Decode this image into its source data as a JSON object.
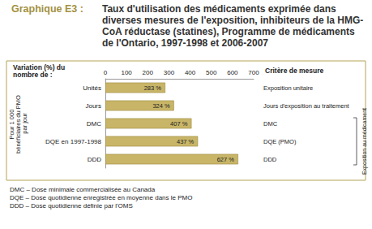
{
  "chart_data": {
    "type": "bar",
    "orientation": "horizontal",
    "figure_label": "Graphique E3 :",
    "title": "Taux d'utilisation des médicaments exprimée dans diverses mesures de l'exposition, inhibiteurs de la HMG-CoA réductase (statines), Programme de médicaments de l'Ontario, 1997-1998 et 2006-2007",
    "x_label": "Variation (%) du nombre de :",
    "y_label": "Pour 1 000 bénéficiaires du PMO par jour",
    "categories": [
      "Unités",
      "Jours",
      "DMC",
      "DQE en 1997-1998",
      "DDD"
    ],
    "values": [
      283,
      324,
      407,
      437,
      627
    ],
    "value_labels": [
      "283 %",
      "324 %",
      "407 %",
      "437 %",
      "627 %"
    ],
    "data_labels": true,
    "color": "#c8b567",
    "xlim": [
      0,
      700
    ],
    "xticks": [
      0,
      100,
      200,
      300,
      400,
      500,
      600,
      700
    ],
    "grid": false,
    "right_header": "Critère de mesure",
    "right_labels": [
      "Exposition unitaire",
      "Jours d'exposition au traitement",
      "DMC",
      "DQE (PMO)",
      "DDD"
    ],
    "bracket": {
      "label": "Exposition au médicament",
      "from": "DMC",
      "to": "DDD"
    },
    "notes": [
      "DMC – Dose minimale commercialisée au Canada",
      "DQE – Dose quotidienne enregistrée en moyenne dans le PMO",
      "DDD – Dose quotidienne définie par l'OMS"
    ]
  }
}
